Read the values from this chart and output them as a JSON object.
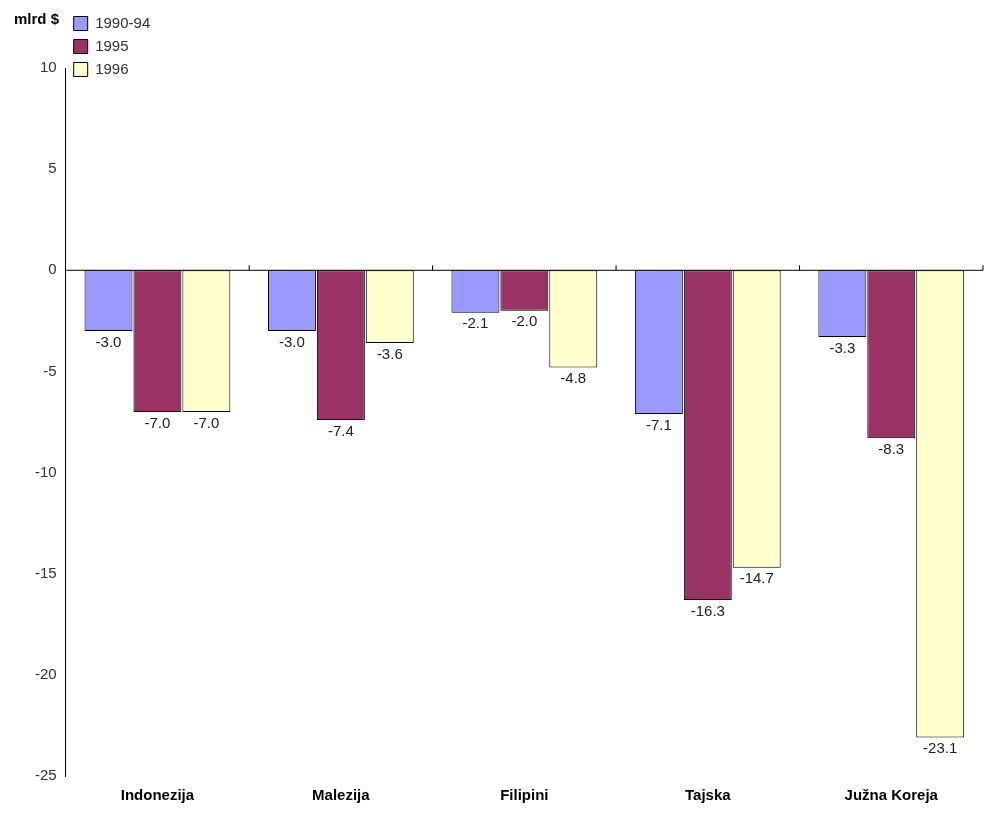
{
  "chart_data": {
    "type": "bar",
    "ylabel": "mlrd $",
    "categories": [
      "Indonezija",
      "Malezija",
      "Filipini",
      "Tajska",
      "Južna Koreja"
    ],
    "series": [
      {
        "name": "1990-94",
        "color": "#9999ff",
        "values": [
          -3.0,
          -3.0,
          -2.1,
          -7.1,
          -3.3
        ],
        "value_labels": [
          "-3.0",
          "-3.0",
          "-2.1",
          "-7.1",
          "-3.3"
        ]
      },
      {
        "name": "1995",
        "color": "#993366",
        "values": [
          -7.0,
          -7.4,
          -2.0,
          -16.3,
          -8.3
        ],
        "value_labels": [
          "-7.0",
          "-7.4",
          "-2.0",
          "-16.3",
          "-8.3"
        ]
      },
      {
        "name": "1996",
        "color": "#ffffcc",
        "values": [
          -7.0,
          -3.6,
          -4.8,
          -14.7,
          -23.1
        ],
        "value_labels": [
          "-7.0",
          "-3.6",
          "-4.8",
          "-14.7",
          "-23.1"
        ]
      }
    ],
    "ylim": [
      -25,
      10
    ],
    "yticks": [
      -25,
      -20,
      -15,
      -10,
      -5,
      0,
      5,
      10
    ],
    "legend": "top left"
  }
}
